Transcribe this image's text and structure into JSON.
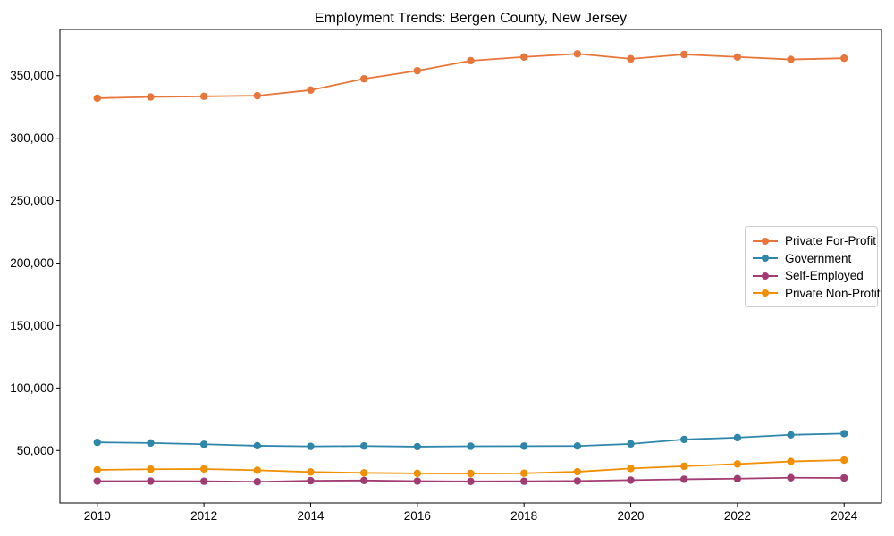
{
  "title": "Employment Trends: Bergen County, New Jersey",
  "chart_data": {
    "type": "line",
    "title": "Employment Trends: Bergen County, New Jersey",
    "xlabel": "",
    "ylabel": "",
    "grid": false,
    "marker": "circle",
    "legend_position": "center right",
    "x": [
      2010,
      2011,
      2012,
      2013,
      2014,
      2015,
      2016,
      2017,
      2018,
      2019,
      2020,
      2021,
      2022,
      2023,
      2024
    ],
    "xticks": [
      2010,
      2012,
      2014,
      2016,
      2018,
      2020,
      2022,
      2024
    ],
    "yticks": [
      {
        "value": 50000,
        "label": "50,000"
      },
      {
        "value": 100000,
        "label": "100,000"
      },
      {
        "value": 150000,
        "label": "150,000"
      },
      {
        "value": 200000,
        "label": "200,000"
      },
      {
        "value": 250000,
        "label": "250,000"
      },
      {
        "value": 300000,
        "label": "300,000"
      },
      {
        "value": 350000,
        "label": "350,000"
      }
    ],
    "ylim": [
      8000,
      387000
    ],
    "xlim": [
      2009.3,
      2024.7
    ],
    "series": [
      {
        "name": "Private For-Profit",
        "color": "#E8763B",
        "values": [
          332000,
          333000,
          333500,
          334000,
          338500,
          347500,
          354000,
          362000,
          365000,
          367500,
          363500,
          367000,
          365000,
          363000,
          364000
        ]
      },
      {
        "name": "Government",
        "color": "#2E86AB",
        "values": [
          56500,
          56000,
          55000,
          53800,
          53300,
          53600,
          53100,
          53400,
          53500,
          53600,
          55300,
          58800,
          60300,
          62500,
          63500
        ]
      },
      {
        "name": "Self-Employed",
        "color": "#A23B72",
        "values": [
          25500,
          25500,
          25400,
          25000,
          25800,
          26000,
          25500,
          25300,
          25400,
          25600,
          26300,
          27000,
          27500,
          28200,
          28000
        ]
      },
      {
        "name": "Private Non-Profit",
        "color": "#F18F01",
        "values": [
          34500,
          35000,
          35200,
          34200,
          32800,
          32100,
          31700,
          31600,
          31800,
          33000,
          35600,
          37400,
          39200,
          41200,
          42300
        ]
      }
    ]
  }
}
